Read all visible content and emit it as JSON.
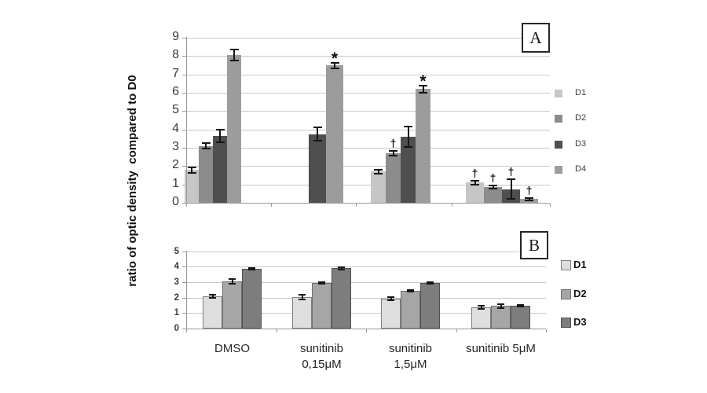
{
  "figure": {
    "y_axis_label": "ratio of optic density  compared to D0",
    "background": "#ffffff"
  },
  "x_axis": {
    "categories_display": [
      [
        "DMSO"
      ],
      [
        "sunitinib",
        "0,15μM"
      ],
      [
        "sunitinib",
        "1,5μM"
      ],
      [
        "sunitinib 5μM"
      ]
    ]
  },
  "significance_symbols": {
    "star": "*",
    "dagger": "†"
  },
  "chart_data": [
    {
      "id": "A",
      "type": "bar",
      "panel_label": "A",
      "ylabel": "ratio of optic density compared to D0",
      "ylim": [
        0,
        9
      ],
      "yticks": [
        0,
        1,
        2,
        3,
        4,
        5,
        6,
        7,
        8,
        9
      ],
      "grid": true,
      "legend_position": "right",
      "categories": [
        "DMSO",
        "sunitinib 0,15μM",
        "sunitinib 1,5μM",
        "sunitinib 5μM"
      ],
      "series": [
        {
          "name": "D1",
          "color": "#c6c6c6",
          "values": [
            1.8,
            null,
            1.7,
            1.1
          ],
          "errors": [
            0.15,
            null,
            0.1,
            0.1
          ],
          "annotations": [
            null,
            null,
            null,
            "†"
          ]
        },
        {
          "name": "D2",
          "color": "#8c8c8c",
          "values": [
            3.1,
            null,
            2.7,
            0.85
          ],
          "errors": [
            0.15,
            null,
            0.12,
            0.08
          ],
          "annotations": [
            null,
            null,
            "†",
            "†"
          ]
        },
        {
          "name": "D3",
          "color": "#4f4f4f",
          "values": [
            3.65,
            3.75,
            3.6,
            0.75
          ],
          "errors": [
            0.35,
            0.35,
            0.55,
            0.55
          ],
          "annotations": [
            null,
            null,
            null,
            "†"
          ]
        },
        {
          "name": "D4",
          "color": "#9c9c9c",
          "values": [
            8.05,
            7.5,
            6.2,
            0.2
          ],
          "errors": [
            0.3,
            0.15,
            0.2,
            0.07
          ],
          "annotations": [
            null,
            "*",
            "*",
            "†"
          ]
        }
      ]
    },
    {
      "id": "B",
      "type": "bar",
      "panel_label": "B",
      "ylabel": "ratio of optic density compared to D0",
      "ylim": [
        0,
        5
      ],
      "yticks": [
        0,
        1,
        2,
        3,
        4,
        5
      ],
      "grid": true,
      "legend_position": "right",
      "categories": [
        "DMSO",
        "sunitinib 0,15μM",
        "sunitinib 1,5μM",
        "sunitinib 5μM"
      ],
      "series": [
        {
          "name": "D1",
          "color": "#dedede",
          "border": "#7f7f7f",
          "values": [
            2.1,
            2.05,
            1.95,
            1.35
          ],
          "errors": [
            0.1,
            0.15,
            0.1,
            0.1
          ],
          "annotations": [
            null,
            null,
            null,
            null
          ]
        },
        {
          "name": "D2",
          "color": "#a6a6a6",
          "border": "#6e6e6e",
          "values": [
            3.05,
            2.95,
            2.45,
            1.45
          ],
          "errors": [
            0.15,
            0.07,
            0.05,
            0.12
          ],
          "annotations": [
            null,
            null,
            null,
            null
          ]
        },
        {
          "name": "D3",
          "color": "#7d7d7d",
          "border": "#4f4f4f",
          "values": [
            3.85,
            3.9,
            2.95,
            1.45
          ],
          "errors": [
            0.05,
            0.08,
            0.05,
            0.05
          ],
          "annotations": [
            null,
            null,
            null,
            null
          ]
        }
      ]
    }
  ]
}
